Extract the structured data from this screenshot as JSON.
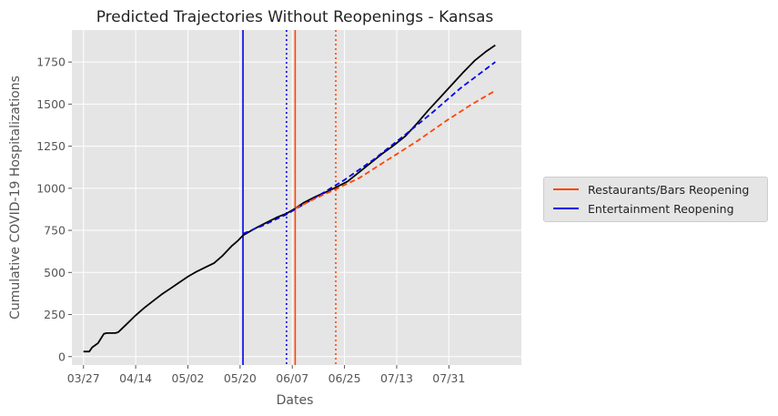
{
  "chart_data": {
    "type": "line",
    "title": "Predicted Trajectories Without Reopenings - Kansas",
    "xlabel": "Dates",
    "ylabel": "Cumulative COVID-19 Hospitalizations",
    "x_tick_labels": [
      "03/27",
      "04/14",
      "05/02",
      "05/20",
      "06/07",
      "06/25",
      "07/13",
      "07/31"
    ],
    "y_ticks": [
      0,
      250,
      500,
      750,
      1000,
      1250,
      1500,
      1750
    ],
    "xlim": [
      "2020-03-23",
      "2020-08-25"
    ],
    "ylim": [
      -50,
      1940
    ],
    "grid": true,
    "legend_position": "right, outside plot",
    "legend": [
      {
        "label": "Restaurants/Bars Reopening",
        "color": "#FF4500",
        "style": "solid"
      },
      {
        "label": "Entertainment Reopening",
        "color": "#0000EE",
        "style": "solid"
      }
    ],
    "vertical_lines": [
      {
        "date": "2020-05-21",
        "color": "#0000EE",
        "style": "solid"
      },
      {
        "date": "2020-06-05",
        "color": "#0000EE",
        "style": "dotted"
      },
      {
        "date": "2020-06-08",
        "color": "#FF4500",
        "style": "solid"
      },
      {
        "date": "2020-06-22",
        "color": "#FF4500",
        "style": "dotted"
      }
    ],
    "series": [
      {
        "color": "#000000",
        "style": "solid",
        "points": [
          [
            "2020-03-27",
            30
          ],
          [
            "2020-03-29",
            30
          ],
          [
            "2020-03-30",
            55
          ],
          [
            "2020-04-01",
            80
          ],
          [
            "2020-04-03",
            135
          ],
          [
            "2020-04-04",
            140
          ],
          [
            "2020-04-07",
            140
          ],
          [
            "2020-04-08",
            145
          ],
          [
            "2020-04-11",
            195
          ],
          [
            "2020-04-14",
            245
          ],
          [
            "2020-04-17",
            290
          ],
          [
            "2020-04-20",
            330
          ],
          [
            "2020-04-23",
            370
          ],
          [
            "2020-04-26",
            405
          ],
          [
            "2020-04-29",
            440
          ],
          [
            "2020-05-02",
            475
          ],
          [
            "2020-05-05",
            505
          ],
          [
            "2020-05-08",
            530
          ],
          [
            "2020-05-11",
            555
          ],
          [
            "2020-05-14",
            600
          ],
          [
            "2020-05-17",
            655
          ],
          [
            "2020-05-19",
            685
          ],
          [
            "2020-05-21",
            720
          ],
          [
            "2020-05-25",
            760
          ],
          [
            "2020-05-29",
            795
          ],
          [
            "2020-06-02",
            830
          ],
          [
            "2020-06-05",
            850
          ],
          [
            "2020-06-08",
            880
          ],
          [
            "2020-06-11",
            915
          ],
          [
            "2020-06-15",
            950
          ],
          [
            "2020-06-19",
            980
          ],
          [
            "2020-06-22",
            1005
          ],
          [
            "2020-06-26",
            1040
          ],
          [
            "2020-06-30",
            1095
          ],
          [
            "2020-07-04",
            1150
          ],
          [
            "2020-07-08",
            1205
          ],
          [
            "2020-07-12",
            1255
          ],
          [
            "2020-07-16",
            1310
          ],
          [
            "2020-07-20",
            1385
          ],
          [
            "2020-07-24",
            1465
          ],
          [
            "2020-07-28",
            1540
          ],
          [
            "2020-08-01",
            1615
          ],
          [
            "2020-08-05",
            1690
          ],
          [
            "2020-08-09",
            1760
          ],
          [
            "2020-08-13",
            1815
          ],
          [
            "2020-08-16",
            1850
          ]
        ]
      },
      {
        "color": "#0000EE",
        "style": "dashed",
        "points": [
          [
            "2020-05-21",
            730
          ],
          [
            "2020-05-28",
            780
          ],
          [
            "2020-06-05",
            845
          ],
          [
            "2020-06-15",
            945
          ],
          [
            "2020-06-25",
            1050
          ],
          [
            "2020-07-05",
            1170
          ],
          [
            "2020-07-15",
            1305
          ],
          [
            "2020-07-25",
            1445
          ],
          [
            "2020-08-04",
            1595
          ],
          [
            "2020-08-16",
            1750
          ]
        ]
      },
      {
        "color": "#FF4500",
        "style": "dashed",
        "points": [
          [
            "2020-06-08",
            880
          ],
          [
            "2020-06-15",
            940
          ],
          [
            "2020-06-22",
            995
          ],
          [
            "2020-06-30",
            1060
          ],
          [
            "2020-07-10",
            1170
          ],
          [
            "2020-07-20",
            1280
          ],
          [
            "2020-07-30",
            1400
          ],
          [
            "2020-08-08",
            1500
          ],
          [
            "2020-08-16",
            1580
          ]
        ]
      }
    ]
  }
}
